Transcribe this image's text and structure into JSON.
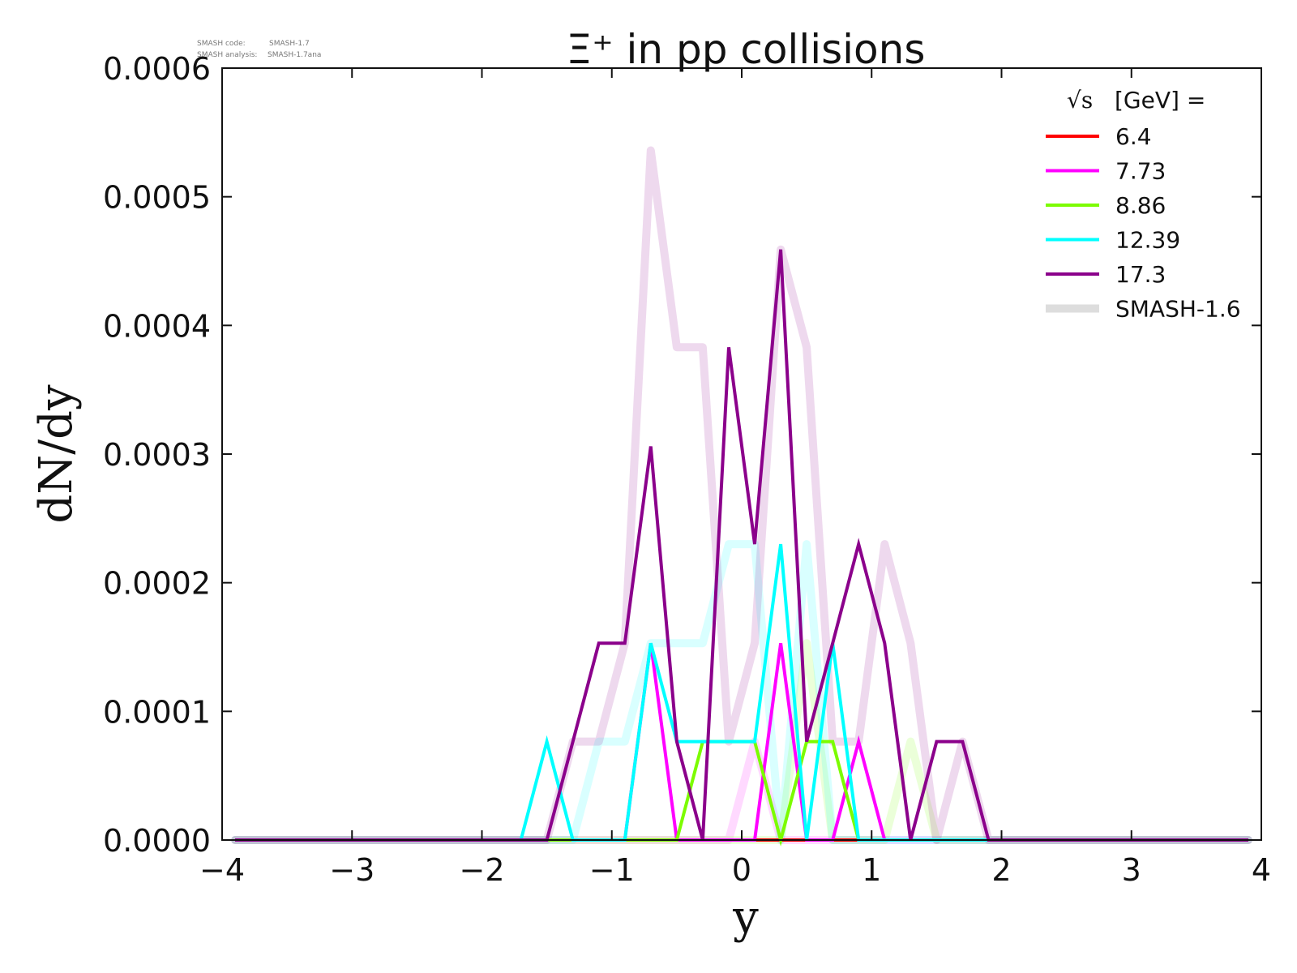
{
  "meta": {
    "code_label": "SMASH code:",
    "code_value": "SMASH-1.7",
    "analysis_label": "SMASH analysis:",
    "analysis_value": "SMASH-1.7ana"
  },
  "chart_data": {
    "type": "line",
    "title": "Ξ⁺ in pp collisions",
    "xlabel": "y",
    "ylabel": "dN/dy",
    "xlim": [
      -4,
      4
    ],
    "ylim": [
      0,
      0.0006
    ],
    "xticks": [
      -4,
      -3,
      -2,
      -1,
      0,
      1,
      2,
      3,
      4
    ],
    "xtick_labels": [
      "−4",
      "−3",
      "−2",
      "−1",
      "0",
      "1",
      "2",
      "3",
      "4"
    ],
    "yticks": [
      0,
      0.0001,
      0.0002,
      0.0003,
      0.0004,
      0.0005,
      0.0006
    ],
    "ytick_labels": [
      "0.0000",
      "0.0001",
      "0.0002",
      "0.0003",
      "0.0004",
      "0.0005",
      "0.0006"
    ],
    "grid": false,
    "legend_title": "[GeV] =",
    "legend_title_symbol": "√s",
    "legend_placement": "top-right",
    "x": [
      -3.9,
      -1.9,
      -1.7,
      -1.5,
      -1.3,
      -1.1,
      -0.9,
      -0.7,
      -0.5,
      -0.3,
      -0.1,
      0.1,
      0.3,
      0.5,
      0.7,
      0.9,
      1.1,
      1.3,
      1.5,
      1.7,
      1.9,
      3.9
    ],
    "series": [
      {
        "name": "6.4",
        "color": "#ff0000",
        "values": [
          0,
          0,
          0,
          0,
          0,
          0,
          0,
          0,
          0,
          0,
          0,
          0,
          0,
          0,
          0,
          0,
          0,
          0,
          0,
          0,
          0,
          0
        ]
      },
      {
        "name": "7.73",
        "color": "#ff00ff",
        "values": [
          0,
          0,
          0,
          0,
          0,
          0,
          0,
          0.000153,
          0,
          0,
          0,
          0,
          0.000153,
          0,
          0,
          7.65e-05,
          0,
          0,
          0,
          0,
          0,
          0
        ]
      },
      {
        "name": "8.86",
        "color": "#7cfc00",
        "values": [
          0,
          0,
          0,
          0,
          0,
          0,
          0,
          0,
          0,
          7.65e-05,
          7.65e-05,
          7.65e-05,
          0,
          7.65e-05,
          7.65e-05,
          0,
          0,
          0,
          0,
          0,
          0,
          0
        ]
      },
      {
        "name": "12.39",
        "color": "#00ffff",
        "values": [
          0,
          0,
          0,
          7.65e-05,
          0,
          0,
          0,
          0.000153,
          7.65e-05,
          7.65e-05,
          7.65e-05,
          7.65e-05,
          0.00023,
          0,
          0.000153,
          0,
          0,
          0,
          0,
          0,
          0,
          0
        ]
      },
      {
        "name": "17.3",
        "color": "#8b008b",
        "values": [
          0,
          0,
          0,
          0,
          7.65e-05,
          0.000153,
          0.000153,
          0.000306,
          7.65e-05,
          0,
          0.000383,
          0.00023,
          0.000459,
          7.65e-05,
          0.000153,
          0.00023,
          0.000153,
          0,
          7.65e-05,
          7.65e-05,
          0,
          0
        ]
      }
    ],
    "reference": {
      "name": "SMASH-1.6",
      "color": "#dddddd",
      "series": [
        {
          "color": "#ff00ff",
          "values": [
            0,
            0,
            0,
            0,
            0,
            0,
            0,
            0,
            0,
            0,
            0,
            7.65e-05,
            0,
            0,
            0,
            0,
            0,
            0,
            0,
            0,
            0,
            0
          ]
        },
        {
          "color": "#7cfc00",
          "values": [
            0,
            0,
            0,
            0,
            0,
            0,
            0,
            0,
            0,
            0,
            0,
            0,
            0,
            0.000153,
            0,
            0,
            0,
            7.65e-05,
            0,
            0,
            0,
            0
          ]
        },
        {
          "color": "#00ffff",
          "values": [
            0,
            0,
            0,
            0,
            0,
            7.65e-05,
            7.65e-05,
            0.000153,
            0.000153,
            0.000153,
            0.00023,
            0.00023,
            0,
            0.00023,
            0,
            0,
            0,
            0,
            0,
            0,
            0,
            0
          ]
        },
        {
          "color": "#8b008b",
          "values": [
            0,
            0,
            0,
            0,
            7.65e-05,
            7.65e-05,
            0.000153,
            0.000536,
            0.000383,
            0.000383,
            7.65e-05,
            0.000153,
            0.000459,
            0.000383,
            7.65e-05,
            7.65e-05,
            0.00023,
            0.000153,
            0,
            7.65e-05,
            0,
            0
          ]
        }
      ]
    }
  }
}
